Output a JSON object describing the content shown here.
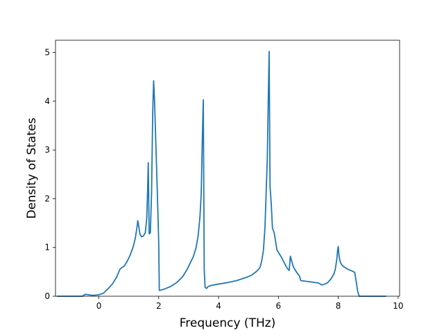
{
  "chart_data": {
    "type": "line",
    "title": "",
    "xlabel": "Frequency (THz)",
    "ylabel": "Density of States",
    "xlim": [
      -1.45,
      10.05
    ],
    "ylim": [
      0,
      5.25
    ],
    "x_ticks": [
      0,
      2,
      4,
      6,
      8,
      10
    ],
    "y_ticks": [
      0,
      1,
      2,
      3,
      4,
      5
    ],
    "grid": false,
    "legend": "none",
    "colors": {
      "line": "#1f77b4",
      "axes": "#000000",
      "background": "#ffffff"
    },
    "series": [
      {
        "x": [
          -1.4,
          -0.55,
          -0.45,
          -0.35,
          -0.25,
          -0.15,
          0.0,
          0.15,
          0.3,
          0.45,
          0.6,
          0.7,
          0.75,
          0.85,
          0.95,
          1.05,
          1.15,
          1.22,
          1.27,
          1.3,
          1.33,
          1.37,
          1.42,
          1.48,
          1.55,
          1.6,
          1.63,
          1.65,
          1.68,
          1.72,
          1.76,
          1.8,
          1.83,
          1.86,
          1.9,
          1.95,
          2.0,
          2.02,
          2.05,
          2.2,
          2.4,
          2.6,
          2.8,
          2.95,
          3.05,
          3.15,
          3.25,
          3.32,
          3.38,
          3.42,
          3.46,
          3.49,
          3.52,
          3.55,
          3.6,
          3.65,
          3.75,
          4.0,
          4.3,
          4.6,
          4.9,
          5.1,
          5.25,
          5.35,
          5.4,
          5.45,
          5.5,
          5.55,
          5.6,
          5.63,
          5.66,
          5.69,
          5.72,
          5.76,
          5.8,
          5.86,
          5.95,
          6.1,
          6.25,
          6.32,
          6.36,
          6.4,
          6.5,
          6.62,
          6.7,
          6.75,
          7.0,
          7.35,
          7.45,
          7.55,
          7.65,
          7.75,
          7.85,
          7.9,
          7.95,
          7.98,
          8.0,
          8.03,
          8.08,
          8.15,
          8.3,
          8.45,
          8.55,
          8.6,
          8.65,
          8.7,
          9.6
        ],
        "values": [
          0.0,
          0.0,
          0.04,
          0.03,
          0.02,
          0.02,
          0.03,
          0.06,
          0.15,
          0.25,
          0.4,
          0.55,
          0.58,
          0.62,
          0.72,
          0.85,
          1.02,
          1.2,
          1.4,
          1.55,
          1.45,
          1.28,
          1.22,
          1.23,
          1.3,
          1.6,
          2.2,
          2.74,
          1.28,
          1.3,
          2.1,
          3.8,
          4.42,
          4.0,
          3.2,
          2.2,
          1.1,
          0.12,
          0.12,
          0.15,
          0.2,
          0.28,
          0.4,
          0.55,
          0.68,
          0.8,
          1.0,
          1.25,
          1.65,
          2.1,
          3.3,
          4.03,
          0.55,
          0.18,
          0.16,
          0.2,
          0.22,
          0.25,
          0.28,
          0.32,
          0.38,
          0.43,
          0.5,
          0.56,
          0.62,
          0.75,
          0.95,
          1.4,
          2.3,
          2.85,
          4.0,
          5.02,
          2.25,
          1.9,
          1.4,
          1.3,
          0.95,
          0.8,
          0.62,
          0.55,
          0.53,
          0.82,
          0.6,
          0.48,
          0.42,
          0.32,
          0.3,
          0.27,
          0.23,
          0.25,
          0.28,
          0.35,
          0.45,
          0.55,
          0.75,
          0.95,
          1.02,
          0.8,
          0.68,
          0.62,
          0.56,
          0.52,
          0.49,
          0.3,
          0.1,
          0.0,
          0.0
        ]
      }
    ]
  }
}
